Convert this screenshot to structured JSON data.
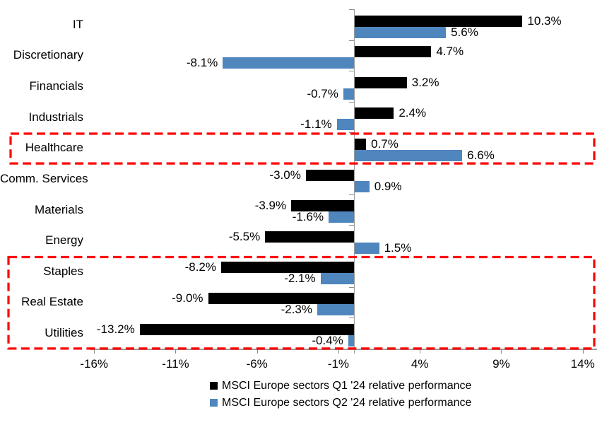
{
  "chart_data": {
    "type": "bar",
    "orientation": "horizontal",
    "title": "",
    "categories": [
      "IT",
      "Discretionary",
      "Financials",
      "Industrials",
      "Healthcare",
      "Comm. Services",
      "Materials",
      "Energy",
      "Staples",
      "Real Estate",
      "Utilities"
    ],
    "series": [
      {
        "name": "MSCI Europe sectors Q1 '24 relative performance",
        "color": "#000000",
        "values": [
          10.3,
          4.7,
          3.2,
          2.4,
          0.7,
          -3.0,
          -3.9,
          -5.5,
          -8.2,
          -9.0,
          -13.2
        ],
        "labels": [
          "10.3%",
          "4.7%",
          "3.2%",
          "2.4%",
          "0.7%",
          "-3.0%",
          "-3.9%",
          "-5.5%",
          "-8.2%",
          "-9.0%",
          "-13.2%"
        ]
      },
      {
        "name": "MSCI Europe sectors Q2 '24 relative performance",
        "color": "#4F86BE",
        "values": [
          5.6,
          -8.1,
          -0.7,
          -1.1,
          6.6,
          0.9,
          -1.6,
          1.5,
          -2.1,
          -2.3,
          -0.4
        ],
        "labels": [
          "5.6%",
          "-8.1%",
          "-0.7%",
          "-1.1%",
          "6.6%",
          "0.9%",
          "-1.6%",
          "1.5%",
          "-2.1%",
          "-2.3%",
          "-0.4%"
        ]
      }
    ],
    "x_axis": {
      "unit": "%",
      "range": [
        -16,
        14
      ],
      "ticks": [
        -16,
        -11,
        -6,
        -1,
        4,
        9,
        14
      ],
      "tick_labels": [
        "-16%",
        "-11%",
        "-6%",
        "-1%",
        "4%",
        "9%",
        "14%"
      ]
    },
    "grid": false,
    "legend_position": "bottom",
    "highlights": [
      {
        "rows": [
          "Healthcare"
        ],
        "row_start": 4,
        "row_end": 4,
        "color": "#FF0000",
        "style": "dashed"
      },
      {
        "rows": [
          "Staples",
          "Real Estate",
          "Utilities"
        ],
        "row_start": 8,
        "row_end": 10,
        "color": "#FF0000",
        "style": "dashed"
      }
    ]
  }
}
